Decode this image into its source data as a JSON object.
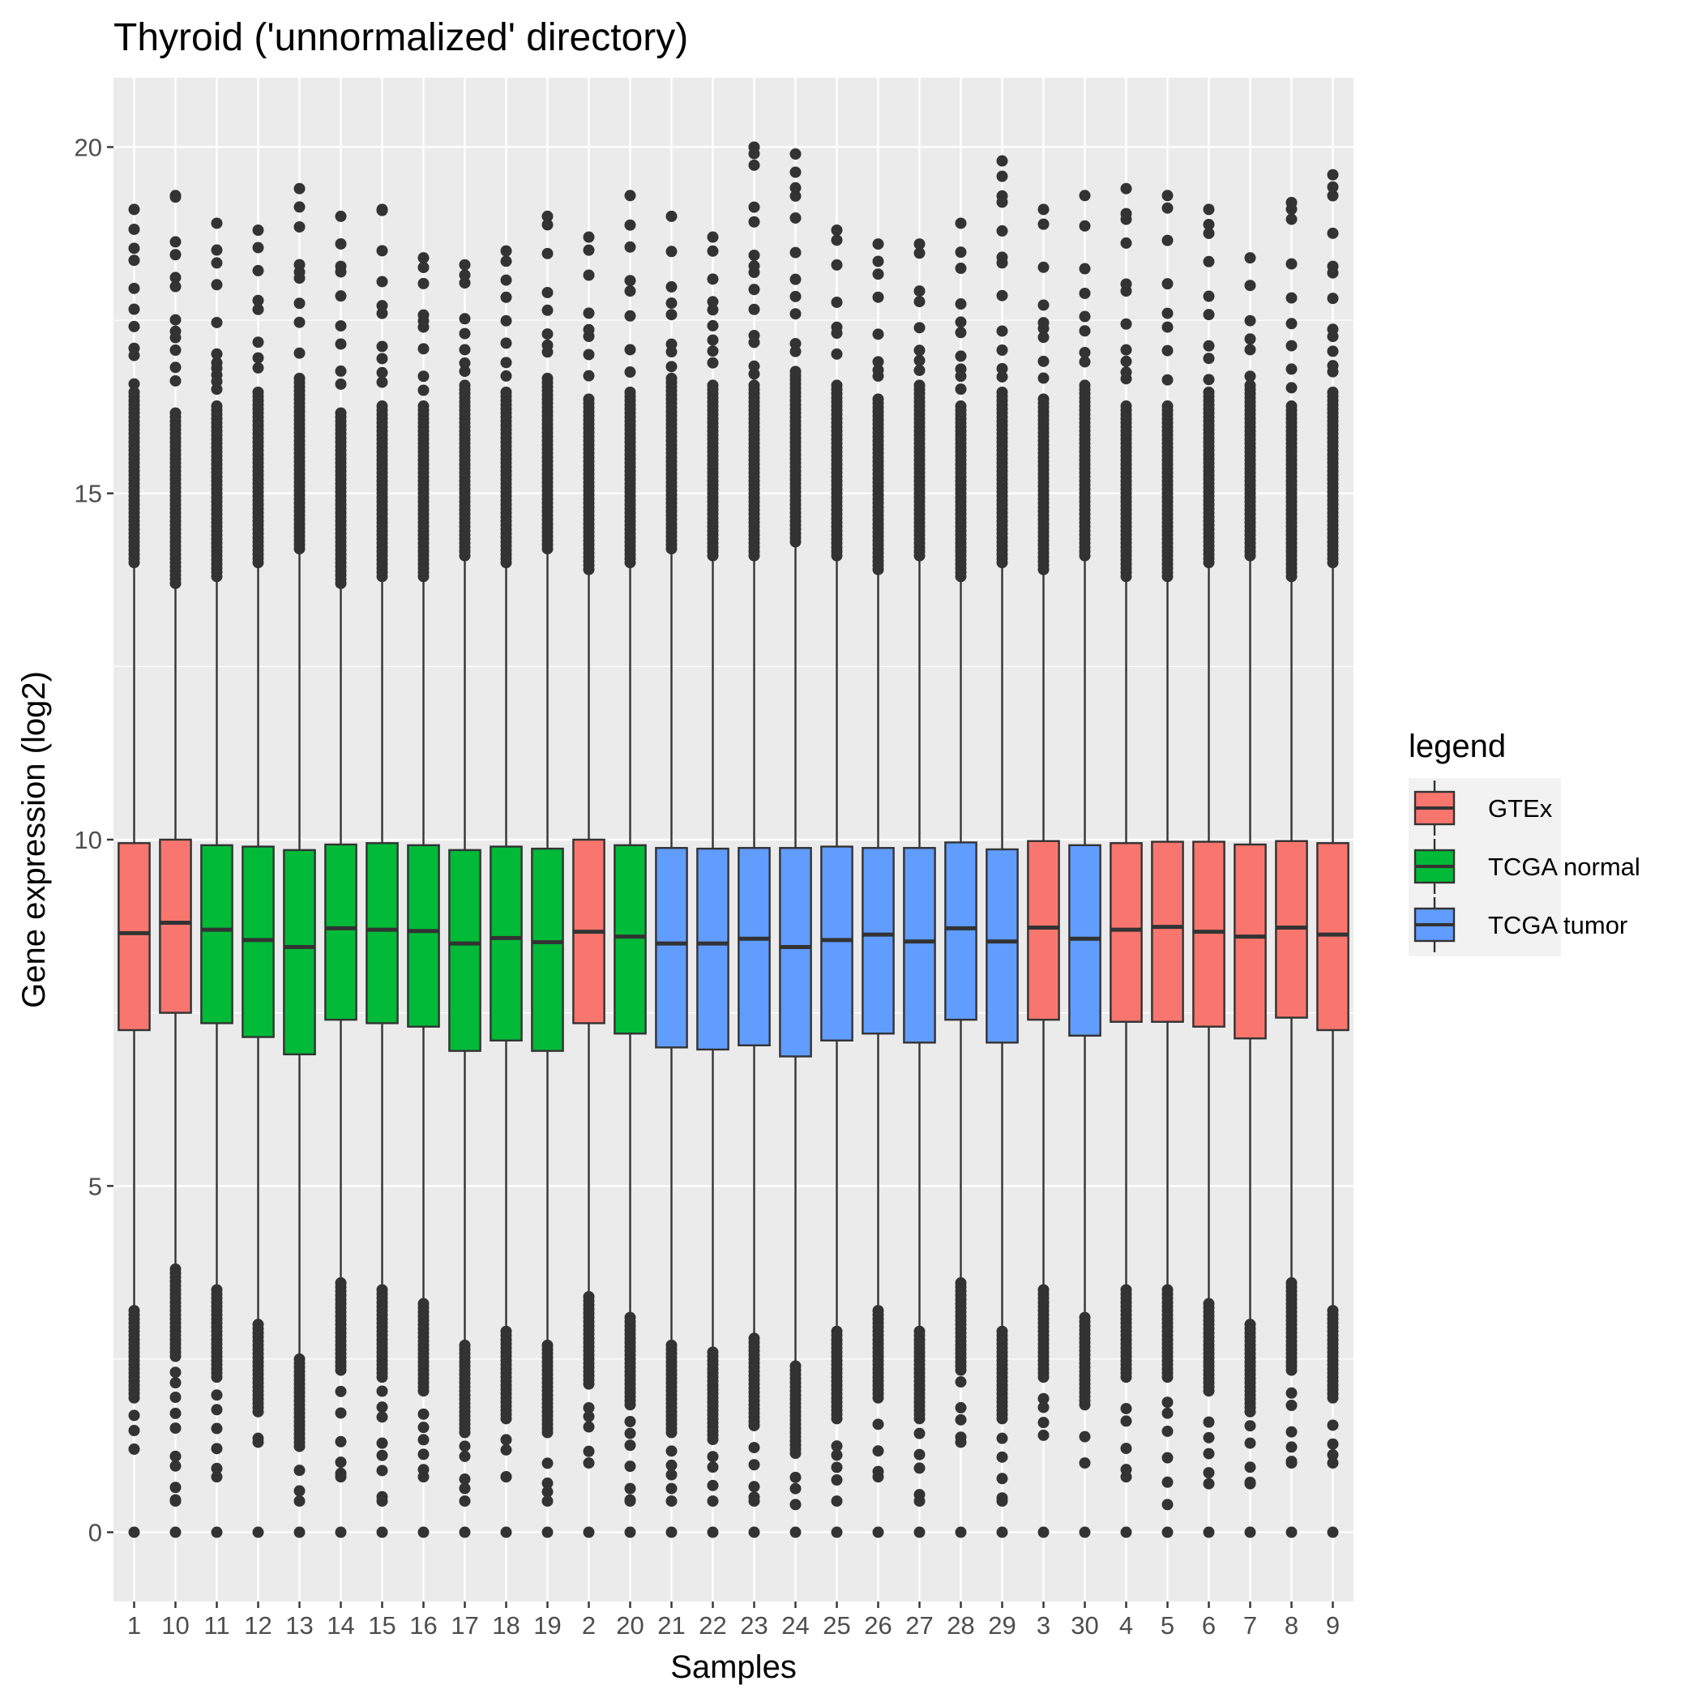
{
  "chart_data": {
    "type": "boxplot",
    "title": "Thyroid ('unnormalized' directory)",
    "xlabel": "Samples",
    "ylabel": "Gene expression (log2)",
    "ylim": [
      -1,
      21
    ],
    "yticks": [
      0,
      5,
      10,
      15,
      20
    ],
    "grid": true,
    "legend": {
      "title": "legend",
      "placement": "right",
      "entries": [
        {
          "name": "GTEx",
          "color": "#F8766D"
        },
        {
          "name": "TCGA normal",
          "color": "#00BA38"
        },
        {
          "name": "TCGA tumor",
          "color": "#619CFF"
        }
      ]
    },
    "categories": [
      "1",
      "10",
      "11",
      "12",
      "13",
      "14",
      "15",
      "16",
      "17",
      "18",
      "19",
      "2",
      "20",
      "21",
      "22",
      "23",
      "24",
      "25",
      "26",
      "27",
      "28",
      "29",
      "3",
      "30",
      "4",
      "5",
      "6",
      "7",
      "8",
      "9"
    ],
    "groups": [
      "GTEx",
      "GTEx",
      "TCGA normal",
      "TCGA normal",
      "TCGA normal",
      "TCGA normal",
      "TCGA normal",
      "TCGA normal",
      "TCGA normal",
      "TCGA normal",
      "TCGA normal",
      "GTEx",
      "TCGA normal",
      "TCGA tumor",
      "TCGA tumor",
      "TCGA tumor",
      "TCGA tumor",
      "TCGA tumor",
      "TCGA tumor",
      "TCGA tumor",
      "TCGA tumor",
      "TCGA tumor",
      "GTEx",
      "TCGA tumor",
      "GTEx",
      "GTEx",
      "GTEx",
      "GTEx",
      "GTEx",
      "GTEx"
    ],
    "boxes": [
      {
        "q1": 7.25,
        "median": 8.65,
        "q3": 9.95,
        "whisker_low": 3.2,
        "whisker_high": 14.0,
        "max": 19.1,
        "min_nonzero": 1.2
      },
      {
        "q1": 7.5,
        "median": 8.8,
        "q3": 10.0,
        "whisker_low": 3.8,
        "whisker_high": 13.7,
        "max": 19.3,
        "min_nonzero": 0.45
      },
      {
        "q1": 7.35,
        "median": 8.7,
        "q3": 9.92,
        "whisker_low": 3.5,
        "whisker_high": 13.8,
        "max": 18.9,
        "min_nonzero": 0.8
      },
      {
        "q1": 7.15,
        "median": 8.55,
        "q3": 9.9,
        "whisker_low": 3.0,
        "whisker_high": 14.0,
        "max": 18.8,
        "min_nonzero": 1.3
      },
      {
        "q1": 6.9,
        "median": 8.45,
        "q3": 9.85,
        "whisker_low": 2.5,
        "whisker_high": 14.2,
        "max": 19.4,
        "min_nonzero": 0.45
      },
      {
        "q1": 7.4,
        "median": 8.72,
        "q3": 9.93,
        "whisker_low": 3.6,
        "whisker_high": 13.7,
        "max": 19.0,
        "min_nonzero": 0.8
      },
      {
        "q1": 7.35,
        "median": 8.7,
        "q3": 9.95,
        "whisker_low": 3.5,
        "whisker_high": 13.8,
        "max": 19.1,
        "min_nonzero": 0.45
      },
      {
        "q1": 7.3,
        "median": 8.68,
        "q3": 9.92,
        "whisker_low": 3.3,
        "whisker_high": 13.8,
        "max": 18.4,
        "min_nonzero": 0.8
      },
      {
        "q1": 6.95,
        "median": 8.5,
        "q3": 9.85,
        "whisker_low": 2.7,
        "whisker_high": 14.1,
        "max": 18.3,
        "min_nonzero": 0.45
      },
      {
        "q1": 7.1,
        "median": 8.58,
        "q3": 9.9,
        "whisker_low": 2.9,
        "whisker_high": 14.0,
        "max": 18.5,
        "min_nonzero": 0.8
      },
      {
        "q1": 6.95,
        "median": 8.52,
        "q3": 9.87,
        "whisker_low": 2.7,
        "whisker_high": 14.2,
        "max": 19.0,
        "min_nonzero": 0.45
      },
      {
        "q1": 7.35,
        "median": 8.67,
        "q3": 10.0,
        "whisker_low": 3.4,
        "whisker_high": 13.9,
        "max": 18.7,
        "min_nonzero": 1.0
      },
      {
        "q1": 7.2,
        "median": 8.6,
        "q3": 9.92,
        "whisker_low": 3.1,
        "whisker_high": 14.0,
        "max": 19.3,
        "min_nonzero": 0.45
      },
      {
        "q1": 7.0,
        "median": 8.5,
        "q3": 9.88,
        "whisker_low": 2.7,
        "whisker_high": 14.2,
        "max": 19.0,
        "min_nonzero": 0.45
      },
      {
        "q1": 6.97,
        "median": 8.5,
        "q3": 9.87,
        "whisker_low": 2.6,
        "whisker_high": 14.1,
        "max": 18.7,
        "min_nonzero": 0.45
      },
      {
        "q1": 7.03,
        "median": 8.57,
        "q3": 9.88,
        "whisker_low": 2.8,
        "whisker_high": 14.1,
        "max": 20.0,
        "min_nonzero": 0.45
      },
      {
        "q1": 6.87,
        "median": 8.45,
        "q3": 9.88,
        "whisker_low": 2.4,
        "whisker_high": 14.3,
        "max": 19.9,
        "min_nonzero": 0.4
      },
      {
        "q1": 7.1,
        "median": 8.55,
        "q3": 9.9,
        "whisker_low": 2.9,
        "whisker_high": 14.1,
        "max": 18.8,
        "min_nonzero": 0.45
      },
      {
        "q1": 7.2,
        "median": 8.63,
        "q3": 9.88,
        "whisker_low": 3.2,
        "whisker_high": 13.9,
        "max": 18.6,
        "min_nonzero": 0.8
      },
      {
        "q1": 7.07,
        "median": 8.53,
        "q3": 9.88,
        "whisker_low": 2.9,
        "whisker_high": 14.1,
        "max": 18.6,
        "min_nonzero": 0.45
      },
      {
        "q1": 7.4,
        "median": 8.72,
        "q3": 9.96,
        "whisker_low": 3.6,
        "whisker_high": 13.8,
        "max": 18.9,
        "min_nonzero": 1.3
      },
      {
        "q1": 7.07,
        "median": 8.53,
        "q3": 9.86,
        "whisker_low": 2.9,
        "whisker_high": 14.0,
        "max": 19.8,
        "min_nonzero": 0.45
      },
      {
        "q1": 7.4,
        "median": 8.73,
        "q3": 9.98,
        "whisker_low": 3.5,
        "whisker_high": 13.9,
        "max": 19.1,
        "min_nonzero": 1.4
      },
      {
        "q1": 7.17,
        "median": 8.57,
        "q3": 9.92,
        "whisker_low": 3.1,
        "whisker_high": 14.1,
        "max": 19.3,
        "min_nonzero": 1.0
      },
      {
        "q1": 7.37,
        "median": 8.7,
        "q3": 9.95,
        "whisker_low": 3.5,
        "whisker_high": 13.8,
        "max": 19.4,
        "min_nonzero": 0.8
      },
      {
        "q1": 7.37,
        "median": 8.74,
        "q3": 9.97,
        "whisker_low": 3.5,
        "whisker_high": 13.8,
        "max": 19.3,
        "min_nonzero": 0.4
      },
      {
        "q1": 7.3,
        "median": 8.67,
        "q3": 9.97,
        "whisker_low": 3.3,
        "whisker_high": 14.0,
        "max": 19.1,
        "min_nonzero": 0.7
      },
      {
        "q1": 7.13,
        "median": 8.6,
        "q3": 9.93,
        "whisker_low": 3.0,
        "whisker_high": 14.1,
        "max": 18.4,
        "min_nonzero": 0.7
      },
      {
        "q1": 7.43,
        "median": 8.73,
        "q3": 9.98,
        "whisker_low": 3.6,
        "whisker_high": 13.8,
        "max": 19.2,
        "min_nonzero": 1.0
      },
      {
        "q1": 7.25,
        "median": 8.63,
        "q3": 9.95,
        "whisker_low": 3.2,
        "whisker_high": 14.0,
        "max": 19.6,
        "min_nonzero": 1.0
      }
    ]
  }
}
